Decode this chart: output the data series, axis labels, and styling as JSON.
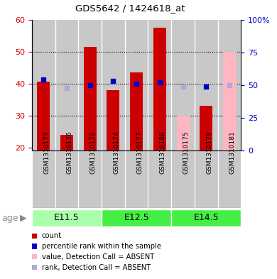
{
  "title": "GDS5642 / 1424618_at",
  "samples": [
    "GSM1310173",
    "GSM1310176",
    "GSM1310179",
    "GSM1310174",
    "GSM1310177",
    "GSM1310180",
    "GSM1310175",
    "GSM1310178",
    "GSM1310181"
  ],
  "count_values": [
    40.5,
    24.0,
    51.5,
    38.0,
    43.5,
    57.5,
    null,
    33.0,
    null
  ],
  "rank_pct_values": [
    54.0,
    null,
    50.0,
    53.0,
    51.0,
    52.0,
    null,
    49.0,
    null
  ],
  "absent_count_values": [
    null,
    null,
    null,
    null,
    null,
    null,
    30.0,
    null,
    50.0
  ],
  "absent_rank_pct_values": [
    null,
    48.0,
    null,
    null,
    null,
    null,
    49.0,
    null,
    50.0
  ],
  "age_groups": [
    {
      "label": "E11.5",
      "start": 0,
      "end": 3,
      "color": "#aaffaa"
    },
    {
      "label": "E12.5",
      "start": 3,
      "end": 6,
      "color": "#44dd44"
    },
    {
      "label": "E14.5",
      "start": 6,
      "end": 9,
      "color": "#44dd44"
    }
  ],
  "ylim_left": [
    19,
    60
  ],
  "ylim_right": [
    0,
    100
  ],
  "yticks_left": [
    20,
    30,
    40,
    50,
    60
  ],
  "yticks_right": [
    0,
    25,
    50,
    75,
    100
  ],
  "ytick_labels_right": [
    "0",
    "25",
    "50",
    "75",
    "100%"
  ],
  "left_axis_color": "#CC0000",
  "right_axis_color": "#0000CC",
  "bg_color": "#C8C8C8",
  "count_color": "#CC0000",
  "rank_color": "#0000CC",
  "absent_count_color": "#FFB6C1",
  "absent_rank_color": "#AAAADD",
  "legend_items": [
    {
      "label": "count",
      "color": "#CC0000"
    },
    {
      "label": "percentile rank within the sample",
      "color": "#0000CC"
    },
    {
      "label": "value, Detection Call = ABSENT",
      "color": "#FFB6C1"
    },
    {
      "label": "rank, Detection Call = ABSENT",
      "color": "#AAAADD"
    }
  ]
}
